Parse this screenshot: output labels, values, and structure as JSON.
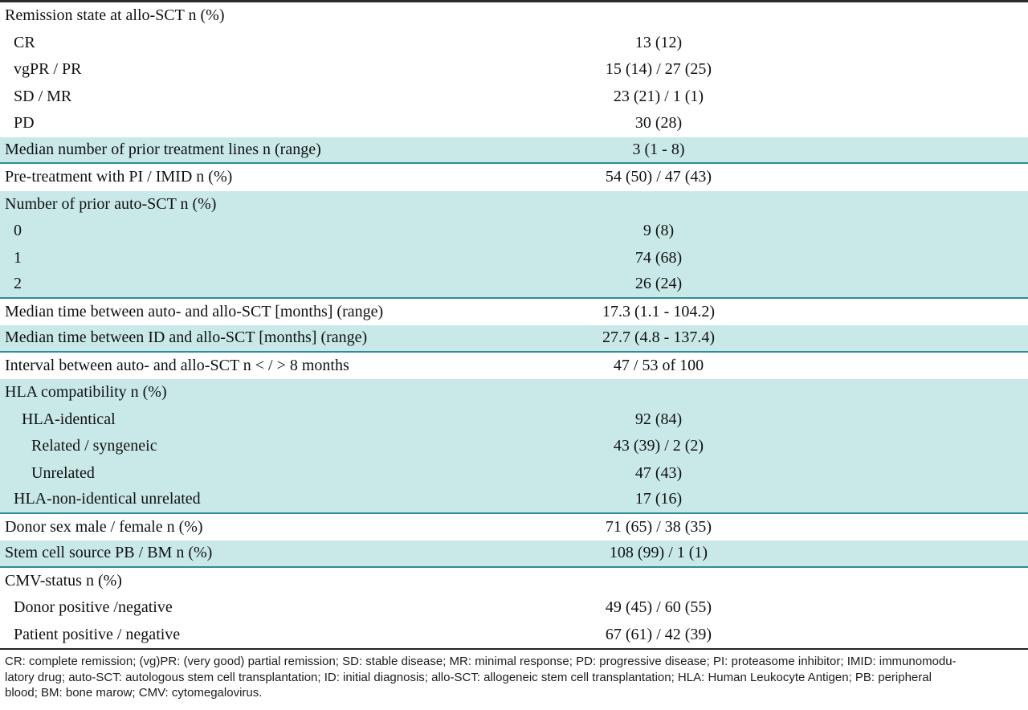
{
  "table": {
    "rows": [
      {
        "label": "Remission state at allo-SCT n (%)",
        "value": "",
        "indent": 0,
        "shaded": false,
        "rule_below": false
      },
      {
        "label": "CR",
        "value": "13 (12)",
        "indent": 1,
        "shaded": false,
        "rule_below": false
      },
      {
        "label": "vgPR / PR",
        "value": "15 (14) / 27 (25)",
        "indent": 1,
        "shaded": false,
        "rule_below": false
      },
      {
        "label": "SD / MR",
        "value": "23 (21) / 1 (1)",
        "indent": 1,
        "shaded": false,
        "rule_below": false
      },
      {
        "label": "PD",
        "value": "30 (28)",
        "indent": 1,
        "shaded": false,
        "rule_below": false
      },
      {
        "label": "Median number of prior treatment lines n (range)",
        "value": "3 (1 - 8)",
        "indent": 0,
        "shaded": true,
        "rule_below": true
      },
      {
        "label": "Pre-treatment with PI / IMID n (%)",
        "value": "54 (50) / 47 (43)",
        "indent": 0,
        "shaded": false,
        "rule_below": false
      },
      {
        "label": "Number of prior auto-SCT n (%)",
        "value": "",
        "indent": 0,
        "shaded": true,
        "rule_below": false
      },
      {
        "label": "0",
        "value": "9 (8)",
        "indent": 1,
        "shaded": true,
        "rule_below": false
      },
      {
        "label": "1",
        "value": "74 (68)",
        "indent": 1,
        "shaded": true,
        "rule_below": false
      },
      {
        "label": "2",
        "value": "26 (24)",
        "indent": 1,
        "shaded": true,
        "rule_below": true
      },
      {
        "label": "Median time between auto- and allo-SCT [months] (range)",
        "value": "17.3 (1.1 - 104.2)",
        "indent": 0,
        "shaded": false,
        "rule_below": false
      },
      {
        "label": "Median time between ID and allo-SCT [months] (range)",
        "value": "27.7 (4.8 - 137.4)",
        "indent": 0,
        "shaded": true,
        "rule_below": true
      },
      {
        "label": "Interval between auto- and allo-SCT n < / > 8 months",
        "value": "47 / 53 of 100",
        "indent": 0,
        "shaded": false,
        "rule_below": false
      },
      {
        "label": "HLA compatibility n (%)",
        "value": "",
        "indent": 0,
        "shaded": true,
        "rule_below": false
      },
      {
        "label": "HLA-identical",
        "value": "92 (84)",
        "indent": 2,
        "shaded": true,
        "rule_below": false
      },
      {
        "label": "Related / syngeneic",
        "value": "43 (39) / 2 (2)",
        "indent": 3,
        "shaded": true,
        "rule_below": false
      },
      {
        "label": "Unrelated",
        "value": "47 (43)",
        "indent": 3,
        "shaded": true,
        "rule_below": false
      },
      {
        "label": "HLA-non-identical unrelated",
        "value": "17 (16)",
        "indent": 1,
        "shaded": true,
        "rule_below": true
      },
      {
        "label": "Donor sex male / female n (%)",
        "value": "71 (65) / 38 (35)",
        "indent": 0,
        "shaded": false,
        "rule_below": false
      },
      {
        "label": "Stem cell source PB / BM n (%)",
        "value": "108 (99) / 1 (1)",
        "indent": 0,
        "shaded": true,
        "rule_below": true
      },
      {
        "label": "CMV-status n (%)",
        "value": "",
        "indent": 0,
        "shaded": false,
        "rule_below": false
      },
      {
        "label": "Donor positive /negative",
        "value": "49 (45) / 60 (55)",
        "indent": 1,
        "shaded": false,
        "rule_below": false
      },
      {
        "label": "Patient positive / negative",
        "value": "67 (61) / 42 (39)",
        "indent": 1,
        "shaded": false,
        "rule_below": false
      }
    ]
  },
  "footnote": {
    "lines": [
      "CR: complete remission; (vg)PR: (very good) partial remission; SD: stable disease; MR: minimal response; PD: progressive disease; PI: proteasome inhibitor; IMID: immunomodu-",
      "latory drug; auto-SCT: autologous stem cell transplantation; ID: initial diagnosis; allo-SCT: allogeneic stem cell transplantation; HLA: Human Leukocyte Antigen; PB: peripheral",
      "blood; BM: bone marow; CMV: cytomegalovirus."
    ]
  },
  "colors": {
    "band": "#c9e9e8",
    "rule": "#2e8c96",
    "border": "#2b2b2b"
  }
}
